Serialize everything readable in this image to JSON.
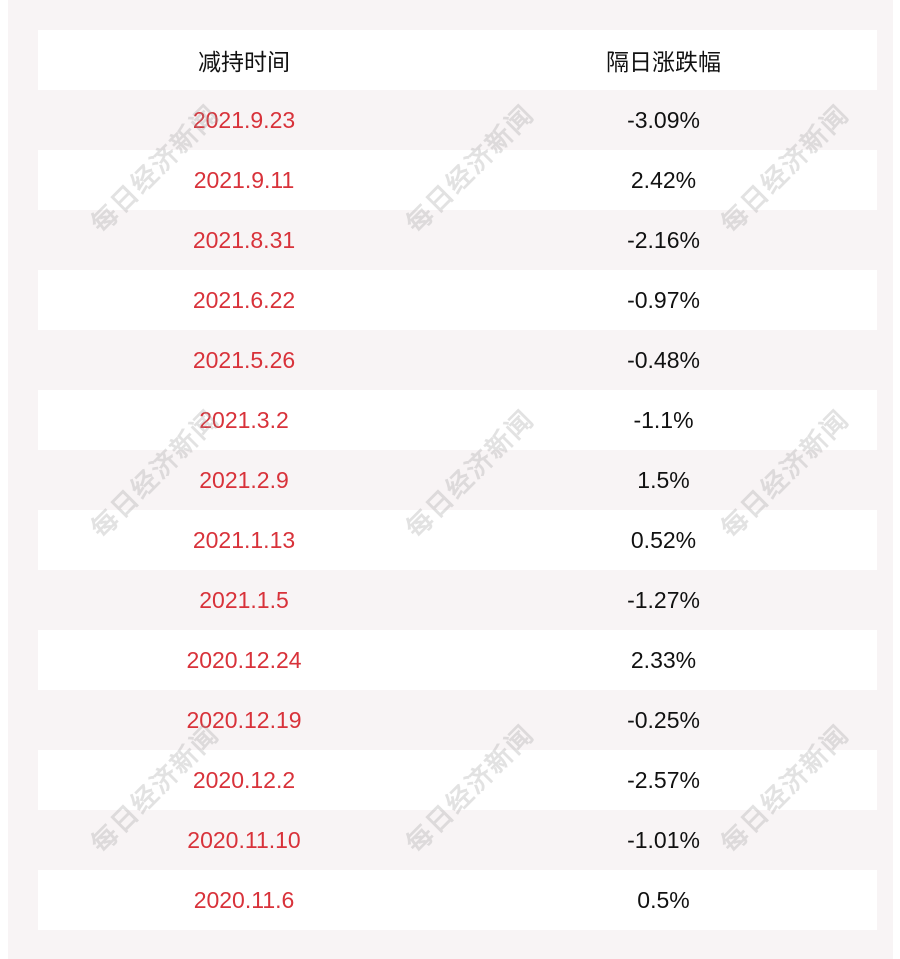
{
  "table": {
    "headers": [
      "减持时间",
      "隔日涨跌幅"
    ],
    "rows": [
      {
        "date": "2021.9.23",
        "change": "-3.09%"
      },
      {
        "date": "2021.9.11",
        "change": "2.42%"
      },
      {
        "date": "2021.8.31",
        "change": "-2.16%"
      },
      {
        "date": "2021.6.22",
        "change": "-0.97%"
      },
      {
        "date": "2021.5.26",
        "change": "-0.48%"
      },
      {
        "date": "2021.3.2",
        "change": "-1.1%"
      },
      {
        "date": "2021.2.9",
        "change": "1.5%"
      },
      {
        "date": "2021.1.13",
        "change": "0.52%"
      },
      {
        "date": "2021.1.5",
        "change": "-1.27%"
      },
      {
        "date": "2020.12.24",
        "change": "2.33%"
      },
      {
        "date": "2020.12.19",
        "change": "-0.25%"
      },
      {
        "date": "2020.12.2",
        "change": "-2.57%"
      },
      {
        "date": "2020.11.10",
        "change": "-1.01%"
      },
      {
        "date": "2020.11.6",
        "change": "0.5%"
      }
    ]
  },
  "watermark": "每日经济新闻",
  "colors": {
    "date": "#d8323a",
    "background": "#f8f4f5"
  }
}
